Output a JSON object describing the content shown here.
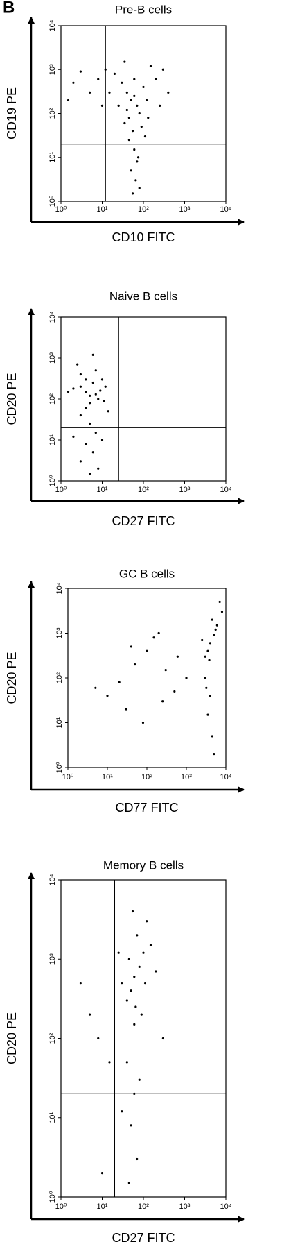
{
  "panel_label": "B",
  "chart_data": [
    {
      "type": "scatter",
      "title": "Pre-B cells",
      "xlabel": "CD10 FITC",
      "ylabel": "CD19 PE",
      "xscale": "log",
      "yscale": "log",
      "color": "#000000",
      "xlim": [
        1,
        10000
      ],
      "ylim": [
        1,
        10000
      ],
      "xticks": [
        {
          "value": 1,
          "label": "10⁰"
        },
        {
          "value": 10,
          "label": "10¹"
        },
        {
          "value": 100,
          "label": "10²"
        },
        {
          "value": 1000,
          "label": "10³"
        },
        {
          "value": 10000,
          "label": "10⁴"
        }
      ],
      "yticks": [
        {
          "value": 1,
          "label": "10⁰"
        },
        {
          "value": 10,
          "label": "10¹"
        },
        {
          "value": 100,
          "label": "10²"
        },
        {
          "value": 1000,
          "label": "10³"
        },
        {
          "value": 10000,
          "label": "10⁴"
        }
      ],
      "quadrant_x": 12,
      "quadrant_y": 20,
      "x": [
        50,
        40,
        70,
        30,
        80,
        60,
        100,
        25,
        45,
        120,
        200,
        300,
        150,
        20,
        8,
        5,
        3,
        2,
        1.5,
        12,
        35,
        90,
        55,
        60,
        70,
        50,
        65,
        80,
        55,
        75,
        45,
        110,
        250,
        400,
        35,
        15,
        10,
        130,
        60,
        40
      ],
      "y": [
        200,
        300,
        150,
        500,
        100,
        250,
        400,
        150,
        80,
        200,
        600,
        1000,
        1200,
        800,
        600,
        300,
        900,
        500,
        200,
        1000,
        60,
        50,
        40,
        15,
        8,
        5,
        3,
        2,
        1.5,
        10,
        25,
        30,
        150,
        300,
        1500,
        300,
        150,
        80,
        600,
        120
      ]
    },
    {
      "type": "scatter",
      "title": "Naive B cells",
      "xlabel": "CD27 FITC",
      "ylabel": "CD20 PE",
      "xscale": "log",
      "yscale": "log",
      "color": "#000000",
      "xlim": [
        1,
        10000
      ],
      "ylim": [
        1,
        10000
      ],
      "xticks": [
        {
          "value": 1,
          "label": "10⁰"
        },
        {
          "value": 10,
          "label": "10¹"
        },
        {
          "value": 100,
          "label": "10²"
        },
        {
          "value": 1000,
          "label": "10³"
        },
        {
          "value": 10000,
          "label": "10⁴"
        }
      ],
      "yticks": [
        {
          "value": 1,
          "label": "10⁰"
        },
        {
          "value": 10,
          "label": "10¹"
        },
        {
          "value": 100,
          "label": "10²"
        },
        {
          "value": 1000,
          "label": "10³"
        },
        {
          "value": 10000,
          "label": "10⁴"
        }
      ],
      "quadrant_x": 25,
      "quadrant_y": 20,
      "x": [
        4,
        3,
        5,
        6,
        2,
        8,
        10,
        3,
        5,
        7,
        1.5,
        12,
        4,
        6,
        2.5,
        9,
        3,
        5,
        7,
        4,
        6,
        3,
        8,
        5,
        10,
        2,
        14,
        11,
        4,
        7
      ],
      "y": [
        150,
        200,
        120,
        250,
        180,
        100,
        300,
        400,
        80,
        500,
        150,
        200,
        60,
        1200,
        700,
        160,
        40,
        25,
        15,
        8,
        5,
        3,
        2,
        1.5,
        10,
        12,
        50,
        90,
        300,
        130
      ]
    },
    {
      "type": "scatter",
      "title": "GC B cells",
      "xlabel": "CD77 FITC",
      "ylabel": "CD20 PE",
      "xscale": "log",
      "yscale": "log",
      "color": "#000000",
      "xlim": [
        1,
        10000
      ],
      "ylim": [
        1,
        10000
      ],
      "xticks": [
        {
          "value": 1,
          "label": "10⁰"
        },
        {
          "value": 10,
          "label": "10¹"
        },
        {
          "value": 100,
          "label": "10²"
        },
        {
          "value": 1000,
          "label": "10³"
        },
        {
          "value": 10000,
          "label": "10⁴"
        }
      ],
      "yticks": [
        {
          "value": 1,
          "label": "10⁰"
        },
        {
          "value": 10,
          "label": "10¹"
        },
        {
          "value": 100,
          "label": "10²"
        },
        {
          "value": 1000,
          "label": "10³"
        },
        {
          "value": 10000,
          "label": "10⁴"
        }
      ],
      "x": [
        4000,
        3500,
        5000,
        3000,
        6000,
        4500,
        7000,
        2500,
        3800,
        5500,
        3000,
        4000,
        3500,
        4500,
        5000,
        3200,
        8000,
        20,
        50,
        100,
        200,
        300,
        500,
        30,
        80,
        10,
        150,
        600,
        1000,
        5,
        40,
        250
      ],
      "y": [
        600,
        400,
        900,
        300,
        1500,
        2000,
        5000,
        700,
        250,
        1200,
        100,
        40,
        15,
        5,
        2,
        60,
        3000,
        80,
        200,
        400,
        1000,
        150,
        50,
        20,
        10,
        40,
        800,
        300,
        100,
        60,
        500,
        30
      ]
    },
    {
      "type": "scatter",
      "title": "Memory B cells",
      "xlabel": "CD27 FITC",
      "ylabel": "CD20 PE",
      "xscale": "log",
      "yscale": "log",
      "color": "#000000",
      "xlim": [
        1,
        10000
      ],
      "ylim": [
        1,
        10000
      ],
      "xticks": [
        {
          "value": 1,
          "label": "10⁰"
        },
        {
          "value": 10,
          "label": "10¹"
        },
        {
          "value": 100,
          "label": "10²"
        },
        {
          "value": 1000,
          "label": "10³"
        },
        {
          "value": 10000,
          "label": "10⁴"
        }
      ],
      "yticks": [
        {
          "value": 1,
          "label": "10⁰"
        },
        {
          "value": 10,
          "label": "10¹"
        },
        {
          "value": 100,
          "label": "10²"
        },
        {
          "value": 1000,
          "label": "10³"
        },
        {
          "value": 10000,
          "label": "10⁴"
        }
      ],
      "quadrant_x": 20,
      "quadrant_y": 20,
      "x": [
        60,
        50,
        80,
        40,
        100,
        70,
        120,
        30,
        90,
        150,
        60,
        45,
        200,
        55,
        40,
        60,
        50,
        70,
        45,
        30,
        80,
        5,
        3,
        8,
        15,
        10,
        300,
        25,
        110,
        65
      ],
      "y": [
        600,
        400,
        800,
        300,
        1200,
        2000,
        3000,
        500,
        200,
        1500,
        150,
        1000,
        700,
        4000,
        50,
        20,
        8,
        3,
        1.5,
        12,
        30,
        200,
        500,
        100,
        50,
        2,
        100,
        1200,
        500,
        250
      ]
    }
  ]
}
